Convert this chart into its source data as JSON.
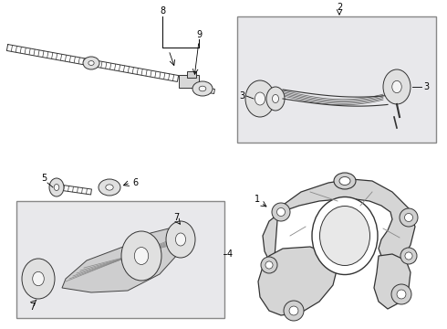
{
  "bg_color": "#ffffff",
  "line_color": "#333333",
  "box_fill": "#e8e8eb",
  "fig_w": 4.9,
  "fig_h": 3.6,
  "dpi": 100
}
